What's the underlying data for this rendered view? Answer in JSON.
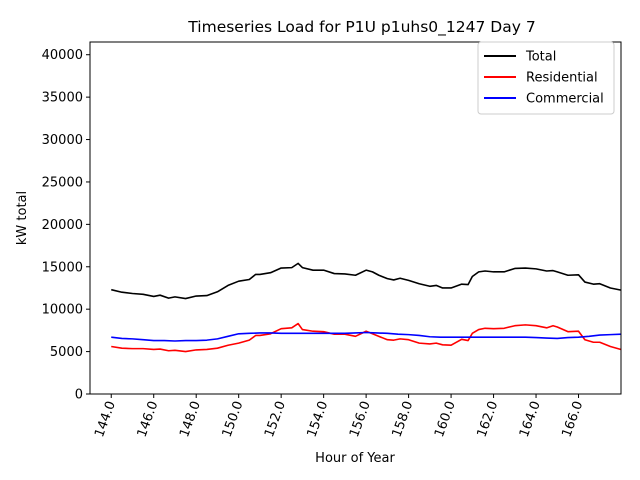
{
  "chart_data": {
    "type": "line",
    "title": "Timeseries Load for P1U p1uhs0_1247  Day 7",
    "xlabel": "Hour of Year",
    "ylabel": "kW total",
    "xlim": [
      143.0,
      168.0
    ],
    "ylim": [
      0,
      41500
    ],
    "x_ticks": [
      144.0,
      146.0,
      148.0,
      150.0,
      152.0,
      154.0,
      156.0,
      158.0,
      160.0,
      162.0,
      164.0,
      166.0
    ],
    "x_tick_labels": [
      "144.0",
      "146.0",
      "148.0",
      "150.0",
      "152.0",
      "154.0",
      "156.0",
      "158.0",
      "160.0",
      "162.0",
      "164.0",
      "166.0"
    ],
    "y_ticks": [
      0,
      5000,
      10000,
      15000,
      20000,
      25000,
      30000,
      35000,
      40000
    ],
    "y_tick_labels": [
      "0",
      "5000",
      "10000",
      "15000",
      "20000",
      "25000",
      "30000",
      "35000",
      "40000"
    ],
    "legend_position": "top-right",
    "series": [
      {
        "name": "Total",
        "color": "#000000",
        "points": [
          [
            144.0,
            12300
          ],
          [
            144.5,
            12000
          ],
          [
            145.0,
            11850
          ],
          [
            145.5,
            11750
          ],
          [
            146.0,
            11500
          ],
          [
            146.3,
            11650
          ],
          [
            146.7,
            11300
          ],
          [
            147.0,
            11450
          ],
          [
            147.5,
            11250
          ],
          [
            148.0,
            11550
          ],
          [
            148.5,
            11600
          ],
          [
            149.0,
            12050
          ],
          [
            149.5,
            12800
          ],
          [
            150.0,
            13300
          ],
          [
            150.5,
            13500
          ],
          [
            150.8,
            14100
          ],
          [
            151.0,
            14100
          ],
          [
            151.5,
            14300
          ],
          [
            152.0,
            14850
          ],
          [
            152.5,
            14900
          ],
          [
            152.8,
            15400
          ],
          [
            153.0,
            14900
          ],
          [
            153.5,
            14600
          ],
          [
            154.0,
            14600
          ],
          [
            154.5,
            14200
          ],
          [
            155.0,
            14150
          ],
          [
            155.5,
            14000
          ],
          [
            156.0,
            14600
          ],
          [
            156.3,
            14400
          ],
          [
            156.6,
            14000
          ],
          [
            157.0,
            13600
          ],
          [
            157.3,
            13450
          ],
          [
            157.6,
            13650
          ],
          [
            158.0,
            13400
          ],
          [
            158.5,
            13000
          ],
          [
            159.0,
            12700
          ],
          [
            159.3,
            12800
          ],
          [
            159.6,
            12500
          ],
          [
            160.0,
            12500
          ],
          [
            160.5,
            12950
          ],
          [
            160.8,
            12900
          ],
          [
            161.0,
            13850
          ],
          [
            161.3,
            14400
          ],
          [
            161.6,
            14500
          ],
          [
            162.0,
            14400
          ],
          [
            162.5,
            14400
          ],
          [
            163.0,
            14800
          ],
          [
            163.5,
            14850
          ],
          [
            164.0,
            14750
          ],
          [
            164.5,
            14500
          ],
          [
            164.8,
            14550
          ],
          [
            165.0,
            14400
          ],
          [
            165.5,
            14000
          ],
          [
            166.0,
            14050
          ],
          [
            166.3,
            13200
          ],
          [
            166.7,
            12950
          ],
          [
            167.0,
            13000
          ],
          [
            167.5,
            12500
          ],
          [
            168.0,
            12250
          ]
        ]
      },
      {
        "name": "Residential",
        "color": "#ff0000",
        "points": [
          [
            144.0,
            5600
          ],
          [
            144.5,
            5400
          ],
          [
            145.0,
            5350
          ],
          [
            145.5,
            5350
          ],
          [
            146.0,
            5250
          ],
          [
            146.3,
            5300
          ],
          [
            146.7,
            5100
          ],
          [
            147.0,
            5150
          ],
          [
            147.5,
            5000
          ],
          [
            148.0,
            5200
          ],
          [
            148.5,
            5250
          ],
          [
            149.0,
            5400
          ],
          [
            149.5,
            5750
          ],
          [
            150.0,
            6000
          ],
          [
            150.5,
            6350
          ],
          [
            150.8,
            6900
          ],
          [
            151.0,
            6900
          ],
          [
            151.5,
            7100
          ],
          [
            152.0,
            7700
          ],
          [
            152.5,
            7800
          ],
          [
            152.8,
            8300
          ],
          [
            153.0,
            7600
          ],
          [
            153.5,
            7400
          ],
          [
            154.0,
            7350
          ],
          [
            154.5,
            7050
          ],
          [
            155.0,
            7050
          ],
          [
            155.5,
            6800
          ],
          [
            156.0,
            7400
          ],
          [
            156.3,
            7100
          ],
          [
            156.6,
            6800
          ],
          [
            157.0,
            6400
          ],
          [
            157.3,
            6350
          ],
          [
            157.6,
            6500
          ],
          [
            158.0,
            6400
          ],
          [
            158.5,
            6000
          ],
          [
            159.0,
            5900
          ],
          [
            159.3,
            6000
          ],
          [
            159.6,
            5800
          ],
          [
            160.0,
            5750
          ],
          [
            160.5,
            6450
          ],
          [
            160.8,
            6300
          ],
          [
            161.0,
            7150
          ],
          [
            161.3,
            7600
          ],
          [
            161.6,
            7750
          ],
          [
            162.0,
            7700
          ],
          [
            162.5,
            7750
          ],
          [
            163.0,
            8050
          ],
          [
            163.5,
            8150
          ],
          [
            164.0,
            8050
          ],
          [
            164.5,
            7800
          ],
          [
            164.8,
            8050
          ],
          [
            165.0,
            7900
          ],
          [
            165.5,
            7350
          ],
          [
            166.0,
            7400
          ],
          [
            166.3,
            6400
          ],
          [
            166.7,
            6100
          ],
          [
            167.0,
            6100
          ],
          [
            167.5,
            5600
          ],
          [
            168.0,
            5250
          ]
        ]
      },
      {
        "name": "Commercial",
        "color": "#0000ff",
        "points": [
          [
            144.0,
            6700
          ],
          [
            144.5,
            6550
          ],
          [
            145.0,
            6500
          ],
          [
            145.5,
            6400
          ],
          [
            146.0,
            6300
          ],
          [
            146.5,
            6300
          ],
          [
            147.0,
            6250
          ],
          [
            147.5,
            6300
          ],
          [
            148.0,
            6300
          ],
          [
            148.5,
            6350
          ],
          [
            149.0,
            6500
          ],
          [
            149.5,
            6800
          ],
          [
            150.0,
            7100
          ],
          [
            150.5,
            7150
          ],
          [
            151.0,
            7200
          ],
          [
            151.5,
            7200
          ],
          [
            152.0,
            7150
          ],
          [
            152.5,
            7150
          ],
          [
            153.0,
            7150
          ],
          [
            153.5,
            7150
          ],
          [
            154.0,
            7150
          ],
          [
            154.5,
            7150
          ],
          [
            155.0,
            7150
          ],
          [
            155.5,
            7200
          ],
          [
            156.0,
            7250
          ],
          [
            156.5,
            7200
          ],
          [
            157.0,
            7150
          ],
          [
            157.5,
            7050
          ],
          [
            158.0,
            7000
          ],
          [
            158.5,
            6900
          ],
          [
            159.0,
            6750
          ],
          [
            159.5,
            6700
          ],
          [
            160.0,
            6700
          ],
          [
            160.5,
            6700
          ],
          [
            161.0,
            6700
          ],
          [
            161.5,
            6700
          ],
          [
            162.0,
            6700
          ],
          [
            162.5,
            6700
          ],
          [
            163.0,
            6700
          ],
          [
            163.5,
            6700
          ],
          [
            164.0,
            6650
          ],
          [
            164.5,
            6600
          ],
          [
            165.0,
            6550
          ],
          [
            165.5,
            6650
          ],
          [
            166.0,
            6700
          ],
          [
            166.5,
            6800
          ],
          [
            167.0,
            6950
          ],
          [
            167.5,
            7000
          ],
          [
            168.0,
            7050
          ]
        ]
      }
    ]
  }
}
